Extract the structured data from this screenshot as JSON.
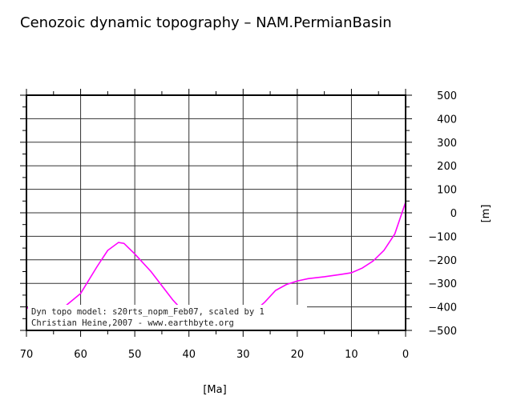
{
  "chart_data": {
    "type": "line",
    "title": "Cenozoic dynamic topography – NAM.PermianBasin",
    "xlabel": "[Ma]",
    "ylabel": "[m]",
    "xlim": [
      70,
      0
    ],
    "ylim": [
      -500,
      500
    ],
    "x_ticks": [
      "70",
      "60",
      "50",
      "40",
      "30",
      "20",
      "10",
      "0"
    ],
    "y_ticks": [
      "500",
      "400",
      "300",
      "200",
      "100",
      "0",
      "−100",
      "−200",
      "−300",
      "−400",
      "−500"
    ],
    "grid": true,
    "series": [
      {
        "color": "#ff00ff",
        "x": [
          70,
          63,
          60,
          57,
          55,
          53,
          52,
          50,
          47,
          45,
          43,
          41,
          38,
          35,
          32,
          29,
          28,
          26,
          24,
          22,
          20,
          18,
          15,
          12,
          10,
          8,
          6,
          4,
          2,
          0
        ],
        "y": [
          -405,
          -400,
          -343,
          -230,
          -160,
          -126,
          -130,
          -175,
          -250,
          -310,
          -370,
          -420,
          -470,
          -500,
          -480,
          -440,
          -420,
          -380,
          -330,
          -305,
          -290,
          -280,
          -272,
          -262,
          -255,
          -235,
          -205,
          -160,
          -90,
          45
        ]
      }
    ],
    "annotations": [
      "Dyn topo model: s20rts_nopm_Feb07, scaled by 1",
      "Christian Heine,2007 - www.earthbyte.org"
    ]
  }
}
